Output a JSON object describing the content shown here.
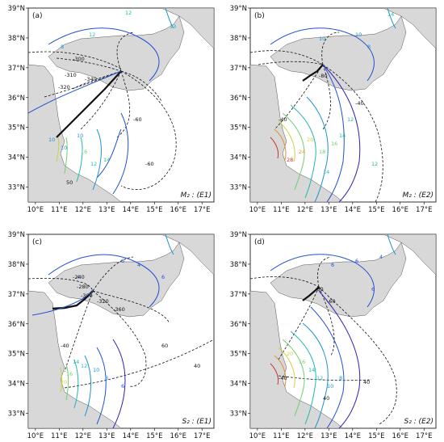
{
  "panels": [
    {
      "id": "a",
      "label": "(a)",
      "constituent": "M₂ : (E1)"
    },
    {
      "id": "b",
      "label": "(b)",
      "constituent": "M₂ : (E2)"
    },
    {
      "id": "c",
      "label": "(c)",
      "constituent": "S₂ : (E1)"
    },
    {
      "id": "d",
      "label": "(d)",
      "constituent": "S₂ : (E2)"
    }
  ],
  "axes": {
    "lon_ticks": [
      "10°E",
      "11°E",
      "12°E",
      "13°E",
      "14°E",
      "15°E",
      "16°E",
      "17°E"
    ],
    "lat_ticks": [
      "39°N",
      "38°N",
      "37°N",
      "36°N",
      "35°N",
      "34°N",
      "33°N"
    ],
    "lon_range": [
      9.7,
      17.5
    ],
    "lat_range": [
      32.5,
      39.0
    ]
  },
  "colors": {
    "land": "#d8d8d8",
    "coast": "#555555",
    "phase_lines": "#111111",
    "amplitude_scale": [
      "#3020b0",
      "#2050d0",
      "#2090d0",
      "#20b8b0",
      "#70d070",
      "#d0d040",
      "#e09030",
      "#d03030",
      "#a01060"
    ]
  },
  "contour_labels": {
    "a": [
      "12",
      "13",
      "12",
      "8",
      "10",
      "10",
      "10",
      "12",
      "14",
      "16",
      "-60",
      "-300",
      "-310",
      "-320",
      "-340",
      "-60",
      "50"
    ],
    "b": [
      "10",
      "14",
      "10",
      "8",
      "12",
      "14",
      "16",
      "18",
      "14",
      "20",
      "24",
      "28",
      "12",
      "-40",
      "-80",
      "-40"
    ],
    "c": [
      "6",
      "4",
      "6",
      "4",
      "6",
      "8",
      "10",
      "12",
      "14",
      "16",
      "20",
      "-240",
      "-280",
      "-300",
      "-320",
      "-360",
      "-40",
      "60",
      "40"
    ],
    "d": [
      "6",
      "4",
      "6",
      "6",
      "8",
      "10",
      "12",
      "14",
      "16",
      "20",
      "-40",
      "-80",
      "-60",
      "40",
      "40"
    ]
  }
}
